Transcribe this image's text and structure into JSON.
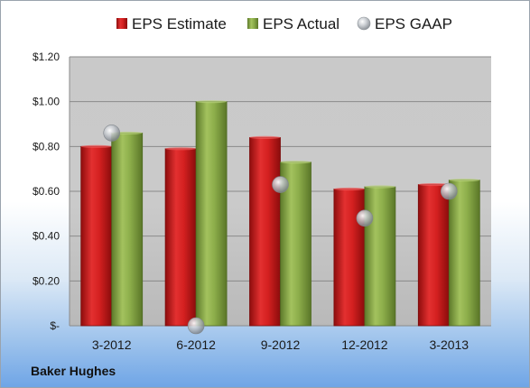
{
  "chart_data": {
    "type": "bar",
    "title": "",
    "xlabel": "",
    "ylabel": "",
    "company": "Baker Hughes",
    "categories": [
      "3-2012",
      "6-2012",
      "9-2012",
      "12-2012",
      "3-2013"
    ],
    "series": [
      {
        "name": "EPS Estimate",
        "type": "bar",
        "color": "#d42020",
        "values": [
          0.8,
          0.79,
          0.84,
          0.61,
          0.63
        ]
      },
      {
        "name": "EPS Actual",
        "type": "bar",
        "color": "#8cad4a",
        "values": [
          0.86,
          1.0,
          0.73,
          0.62,
          0.65
        ]
      },
      {
        "name": "EPS GAAP",
        "type": "marker",
        "color": "#b9bec4",
        "values": [
          0.86,
          0.0,
          0.63,
          0.48,
          0.6
        ]
      }
    ],
    "ylim": [
      0,
      1.2
    ],
    "yticks": [
      0,
      0.2,
      0.4,
      0.6,
      0.8,
      1.0,
      1.2
    ],
    "ytick_labels": [
      "$-",
      "$0.20",
      "$0.40",
      "$0.60",
      "$0.80",
      "$1.00",
      "$1.20"
    ],
    "grid": true,
    "legend": "top"
  }
}
